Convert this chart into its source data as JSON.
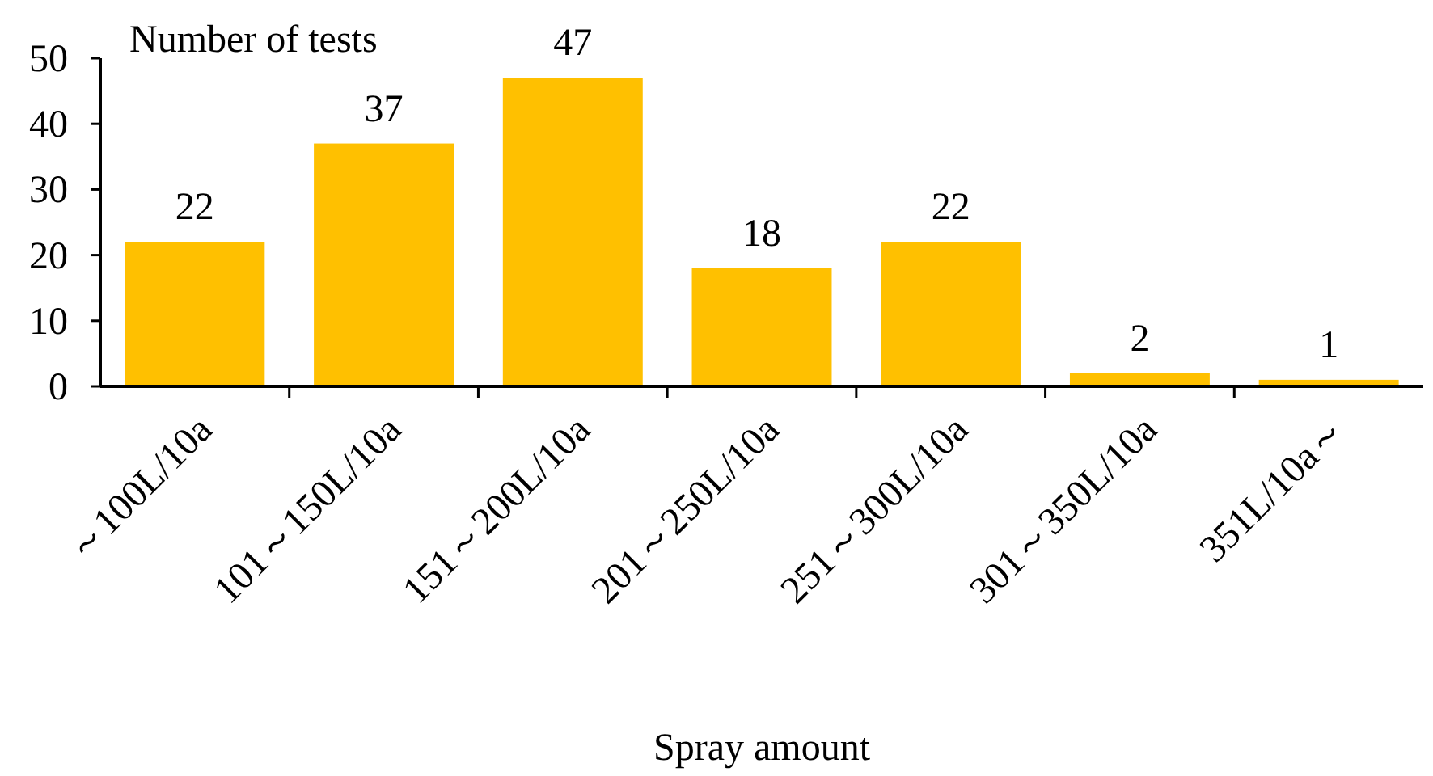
{
  "chart_data": {
    "type": "bar",
    "ylabel": "Number of tests",
    "xlabel": "Spray amount",
    "categories": [
      "～100L/10a",
      "101～150L/10a",
      "151～200L/10a",
      "201～250L/10a",
      "251～300L/10a",
      "301～350L/10a",
      "351L/10a～"
    ],
    "values": [
      22,
      37,
      47,
      18,
      22,
      2,
      1
    ],
    "color": "#ffc000",
    "ylim": [
      0,
      50
    ],
    "yticks": [
      0,
      10,
      20,
      30,
      40,
      50
    ],
    "data_labels": true,
    "grid": false
  }
}
